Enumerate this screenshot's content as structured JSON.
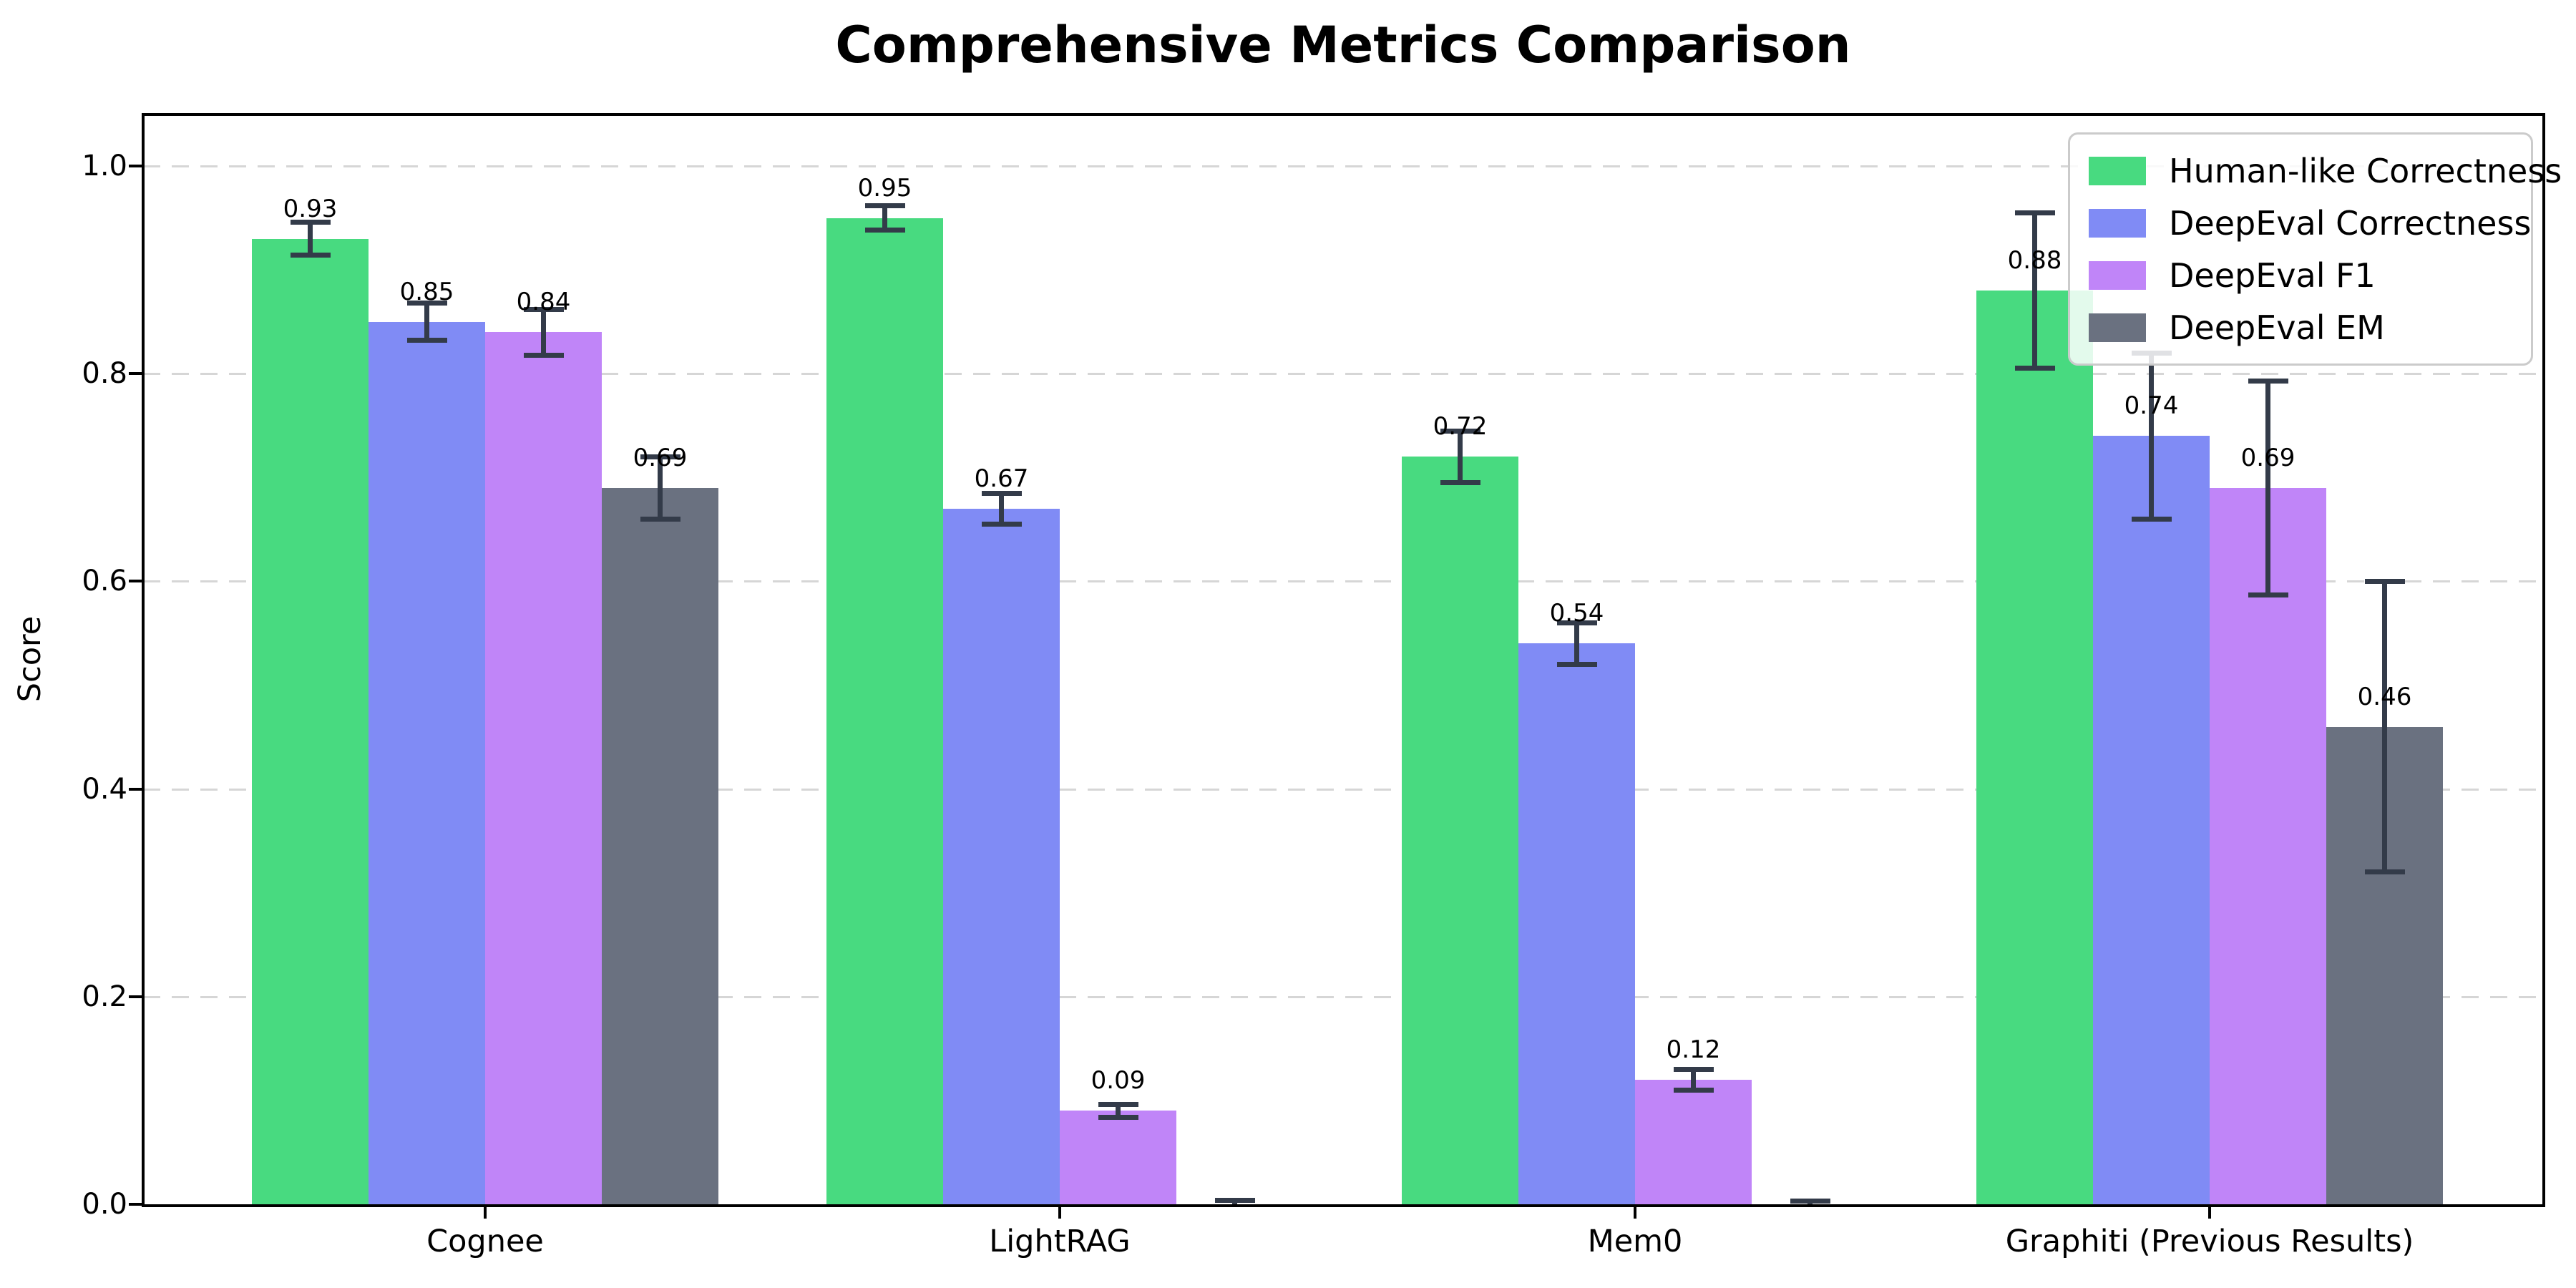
{
  "title": "Comprehensive Metrics Comparison",
  "ylabel": "Score",
  "chart_data": {
    "type": "bar",
    "categories": [
      "Cognee",
      "LightRAG",
      "Mem0",
      "Graphiti (Previous Results)"
    ],
    "series": [
      {
        "name": "Human-like Correctness",
        "color": "#48da80",
        "values": [
          0.93,
          0.95,
          0.72,
          0.88
        ],
        "errors": [
          0.016,
          0.012,
          0.025,
          0.075
        ],
        "labels": [
          "0.93",
          "0.95",
          "0.72",
          "0.88"
        ]
      },
      {
        "name": "DeepEval Correctness",
        "color": "#808bf5",
        "values": [
          0.85,
          0.67,
          0.54,
          0.74
        ],
        "errors": [
          0.018,
          0.015,
          0.02,
          0.08
        ],
        "labels": [
          "0.85",
          "0.67",
          "0.54",
          "0.74"
        ]
      },
      {
        "name": "DeepEval F1",
        "color": "#c085f8",
        "values": [
          0.84,
          0.09,
          0.12,
          0.69
        ],
        "errors": [
          0.022,
          0.006,
          0.01,
          0.103
        ],
        "labels": [
          "0.84",
          "0.09",
          "0.12",
          "0.69"
        ]
      },
      {
        "name": "DeepEval EM",
        "color": "#6a7180",
        "values": [
          0.69,
          0.0,
          0.0,
          0.46
        ],
        "errors": [
          0.03,
          0.004,
          0.003,
          0.14
        ],
        "labels": [
          "0.69",
          null,
          null,
          "0.46"
        ]
      }
    ],
    "ylim": [
      0,
      1.05
    ],
    "yticks": [
      0.0,
      0.2,
      0.4,
      0.6,
      0.8,
      1.0
    ],
    "ytick_labels": [
      "0.0",
      "0.2",
      "0.4",
      "0.6",
      "0.8",
      "1.0"
    ],
    "grid": "horizontal-dashed",
    "gridline_color": "#d6d6d6",
    "legend_position": "upper-right",
    "error_bar_color": "#333b49",
    "axis_color": "#000000"
  }
}
